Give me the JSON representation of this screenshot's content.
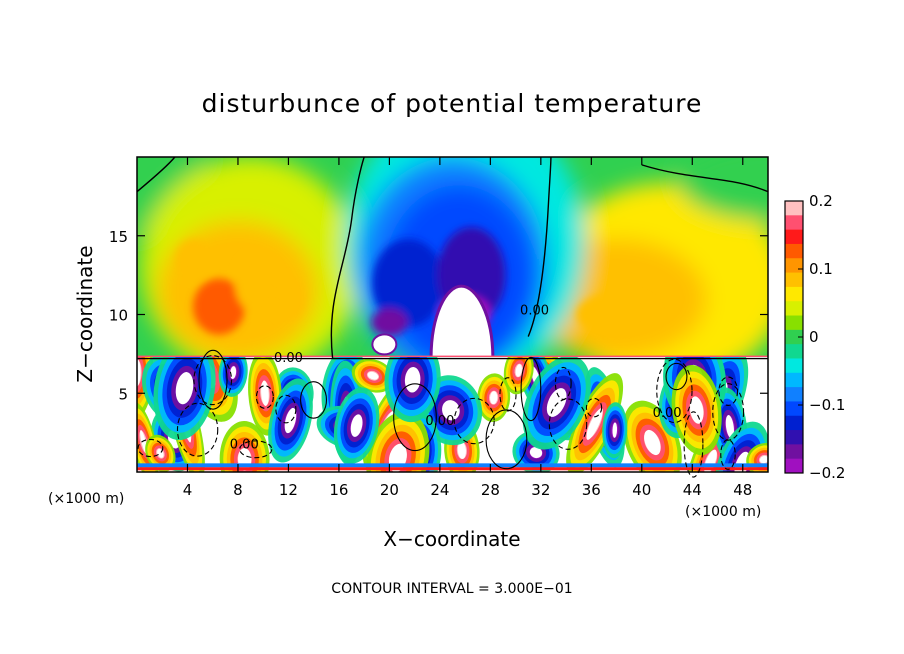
{
  "chart_data": {
    "type": "heatmap",
    "title": "disturbunce of potential temperature",
    "xlabel": "X−coordinate",
    "ylabel": "Z−coordinate",
    "x_unit": "(×1000 m)",
    "z_unit": "(×1000 m)",
    "xlim": [
      0,
      50
    ],
    "zlim": [
      0,
      20
    ],
    "x_ticks": [
      4,
      8,
      12,
      16,
      20,
      24,
      28,
      32,
      36,
      40,
      44,
      48
    ],
    "x_tick_labels": [
      "4",
      "8",
      "12",
      "16",
      "20",
      "24",
      "28",
      "32",
      "36",
      "40",
      "44",
      "48"
    ],
    "z_ticks": [
      5,
      10,
      15
    ],
    "z_tick_labels": [
      "5",
      "10",
      "15"
    ],
    "colorbar": {
      "range": [
        -0.2,
        0.2
      ],
      "tick_values": [
        0.2,
        0.1,
        0,
        -0.1,
        -0.2
      ],
      "tick_labels": [
        "0.2",
        "0.1",
        "0",
        "−0.1",
        "−0.2"
      ],
      "colors": [
        "#ffc0c0",
        "#ff5070",
        "#ff1a1a",
        "#ff5a00",
        "#ff9500",
        "#ffc000",
        "#ffe800",
        "#d8f000",
        "#88e000",
        "#30d050",
        "#10d890",
        "#00e8e0",
        "#00b8ff",
        "#1080ff",
        "#0048ff",
        "#0020d0",
        "#3010b0",
        "#7010a0",
        "#a010c0"
      ]
    },
    "upper_features": [
      {
        "x": 6.5,
        "z": 10.5,
        "value": 0.14
      },
      {
        "x": 9,
        "z": 13,
        "value": 0.07
      },
      {
        "x": 25,
        "z": 11,
        "value": -0.2
      },
      {
        "x": 20,
        "z": 10,
        "value": -0.17
      },
      {
        "x": 24,
        "z": 17,
        "value": -0.06
      },
      {
        "x": 38,
        "z": 11,
        "value": 0.08
      }
    ],
    "boundary_z": 7.2,
    "contour_labels": [
      {
        "x": 12,
        "z": 7.0,
        "text": "0.00"
      },
      {
        "x": 31.5,
        "z": 10,
        "text": "0.00"
      },
      {
        "x": 8.5,
        "z": 1.5,
        "text": "0.00"
      },
      {
        "x": 24,
        "z": 3,
        "text": "0.00"
      },
      {
        "x": 42,
        "z": 3.5,
        "text": "0.00"
      }
    ],
    "footer": "CONTOUR INTERVAL = 3.000E−01"
  }
}
